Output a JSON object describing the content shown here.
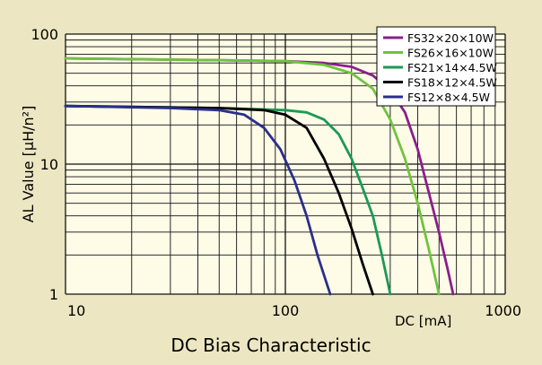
{
  "chart_data": {
    "type": "line",
    "title": "DC Bias Characteristic",
    "xlabel": "DC [mA]",
    "ylabel": "AL Value [μH/n²]",
    "x_scale": "log",
    "y_scale": "log",
    "xlim": [
      10,
      1000
    ],
    "ylim": [
      1,
      100
    ],
    "x_ticks": [
      {
        "value": 10,
        "label": "10"
      },
      {
        "value": 100,
        "label": "100"
      },
      {
        "value": 1000,
        "label": "1000"
      }
    ],
    "y_ticks": [
      {
        "value": 1,
        "label": "1"
      },
      {
        "value": 10,
        "label": "10"
      },
      {
        "value": 100,
        "label": "100"
      }
    ],
    "grid": true,
    "legend_position": "top-right",
    "colors": {
      "plot_background": "#fefbe7",
      "page_background": "#ece6c2",
      "grid": "#111111"
    },
    "series": [
      {
        "name": "FS32×20×10W",
        "color": "#8a1f8c",
        "points": [
          [
            10,
            65
          ],
          [
            50,
            63
          ],
          [
            100,
            62
          ],
          [
            150,
            60
          ],
          [
            200,
            56
          ],
          [
            250,
            48
          ],
          [
            300,
            37
          ],
          [
            350,
            25
          ],
          [
            400,
            13
          ],
          [
            450,
            6
          ],
          [
            500,
            3
          ],
          [
            550,
            1.5
          ],
          [
            580,
            1
          ]
        ]
      },
      {
        "name": "FS26×16×10W",
        "color": "#6ec43f",
        "points": [
          [
            10,
            65
          ],
          [
            50,
            63
          ],
          [
            100,
            62
          ],
          [
            150,
            58
          ],
          [
            200,
            50
          ],
          [
            250,
            38
          ],
          [
            300,
            22
          ],
          [
            350,
            11
          ],
          [
            400,
            5
          ],
          [
            450,
            2.2
          ],
          [
            500,
            1
          ]
        ]
      },
      {
        "name": "FS21×14×4.5W",
        "color": "#1a9a55",
        "points": [
          [
            10,
            28
          ],
          [
            50,
            27
          ],
          [
            100,
            26
          ],
          [
            125,
            25
          ],
          [
            150,
            22
          ],
          [
            175,
            17
          ],
          [
            200,
            11
          ],
          [
            225,
            6.5
          ],
          [
            250,
            4
          ],
          [
            275,
            2
          ],
          [
            300,
            1
          ]
        ]
      },
      {
        "name": "FS18×12×4.5W",
        "color": "#000000",
        "points": [
          [
            10,
            28
          ],
          [
            50,
            27
          ],
          [
            80,
            26
          ],
          [
            100,
            24
          ],
          [
            125,
            19
          ],
          [
            150,
            11
          ],
          [
            175,
            6
          ],
          [
            200,
            3.2
          ],
          [
            225,
            1.7
          ],
          [
            250,
            1
          ]
        ]
      },
      {
        "name": "FS12×8×4.5W",
        "color": "#2a2f8c",
        "points": [
          [
            10,
            28
          ],
          [
            30,
            27
          ],
          [
            50,
            26
          ],
          [
            65,
            24
          ],
          [
            80,
            19
          ],
          [
            95,
            13
          ],
          [
            110,
            7.5
          ],
          [
            125,
            4
          ],
          [
            140,
            2
          ],
          [
            160,
            1
          ]
        ]
      }
    ]
  }
}
